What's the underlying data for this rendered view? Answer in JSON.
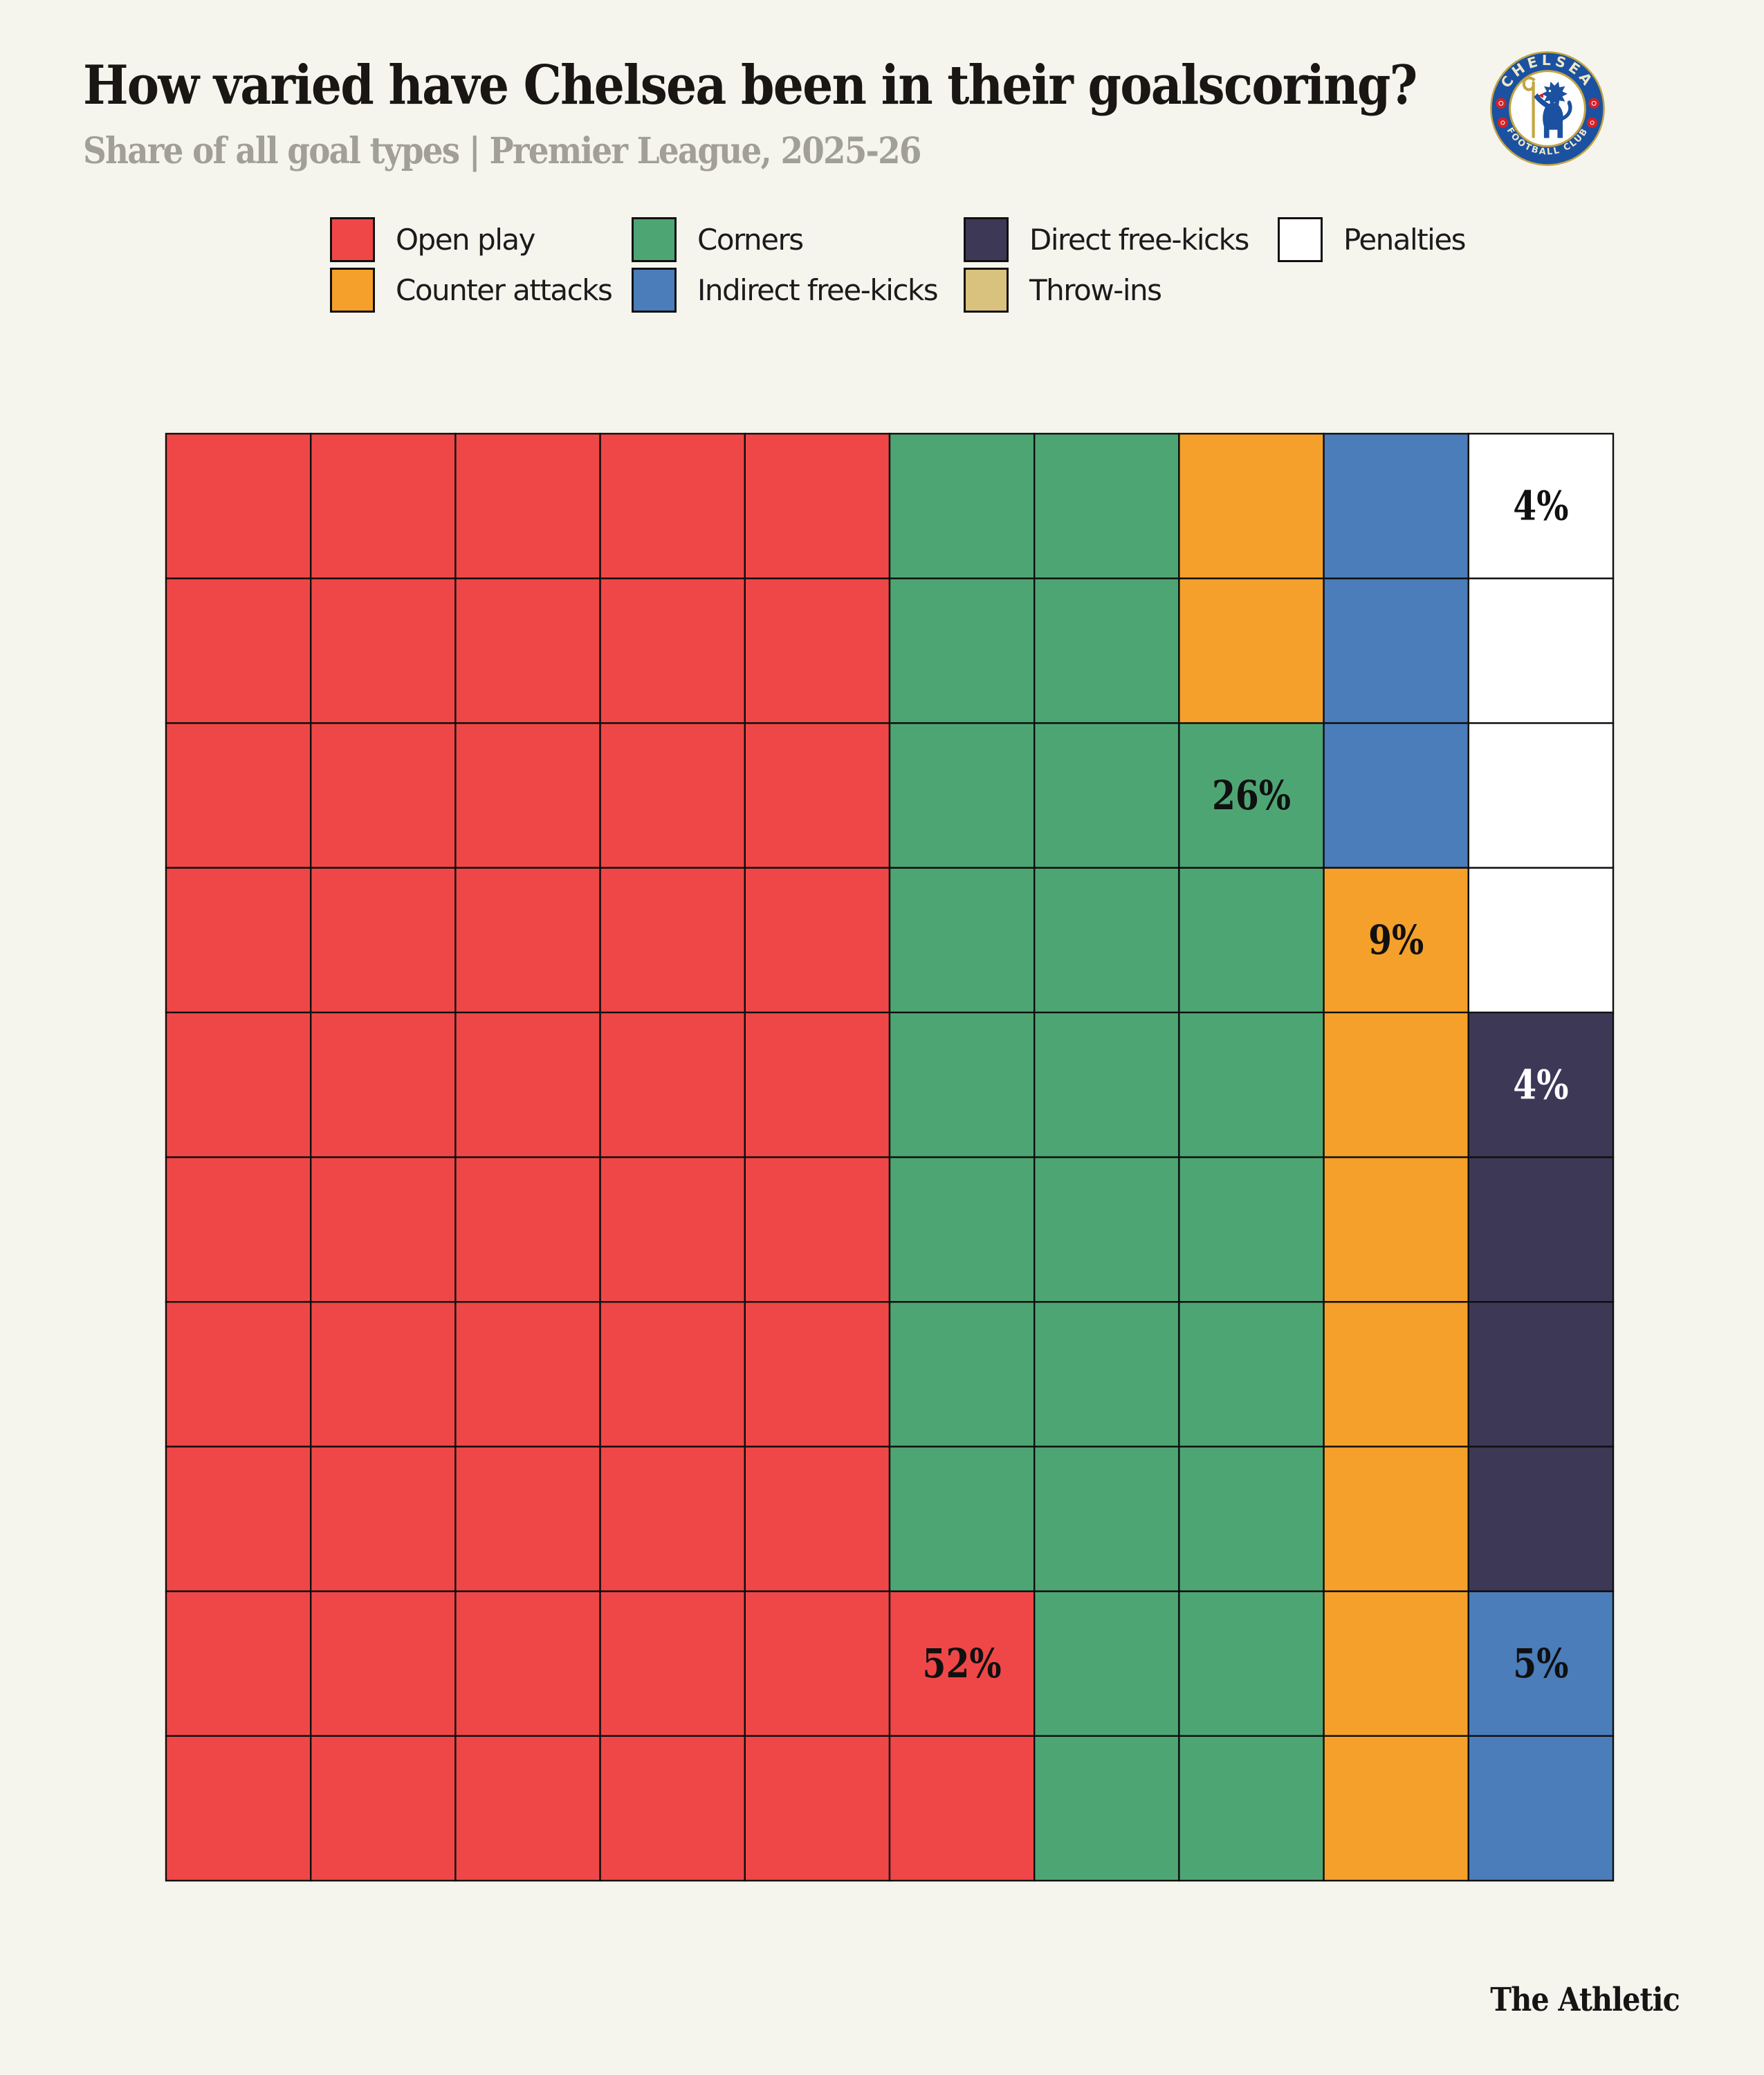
{
  "title": "How varied have Chelsea been in their goalscoring?",
  "subtitle": "Share of all goal types | Premier League, 2025-26",
  "footer": "The Athletic",
  "logo": {
    "top_text": "CHELSEA",
    "bottom_text": "FOOTBALL CLUB"
  },
  "legend": [
    {
      "label": "Open play",
      "color": "#ef4747"
    },
    {
      "label": "Corners",
      "color": "#4ea574"
    },
    {
      "label": "Direct free-kicks",
      "color": "#3e3857"
    },
    {
      "label": "Penalties",
      "color": "#ffffff"
    },
    {
      "label": "Counter attacks",
      "color": "#f5a02b"
    },
    {
      "label": "Indirect free-kicks",
      "color": "#4a7db9"
    },
    {
      "label": "Throw-ins",
      "color": "#d9c27e"
    }
  ],
  "chart_data": {
    "type": "waffle",
    "grid": {
      "rows": 10,
      "cols": 10,
      "cell_unit_percent": 1,
      "fill_order": "columns left-to-right, bottom-to-top"
    },
    "series": [
      {
        "name": "Open play",
        "value": 52,
        "color": "#ef4747",
        "label": "52%",
        "label_color": "#101010"
      },
      {
        "name": "Corners",
        "value": 26,
        "color": "#4ea574",
        "label": "26%",
        "label_color": "#101010"
      },
      {
        "name": "Counter attacks",
        "value": 9,
        "color": "#f5a02b",
        "label": "9%",
        "label_color": "#101010"
      },
      {
        "name": "Indirect free-kicks",
        "value": 5,
        "color": "#4a7db9",
        "label": "5%",
        "label_color": "#101010"
      },
      {
        "name": "Direct free-kicks",
        "value": 4,
        "color": "#3e3857",
        "label": "4%",
        "label_color": "#ffffff"
      },
      {
        "name": "Penalties",
        "value": 4,
        "color": "#ffffff",
        "label": "4%",
        "label_color": "#101010"
      },
      {
        "name": "Throw-ins",
        "value": 0,
        "color": "#d9c27e",
        "label": null
      }
    ]
  }
}
